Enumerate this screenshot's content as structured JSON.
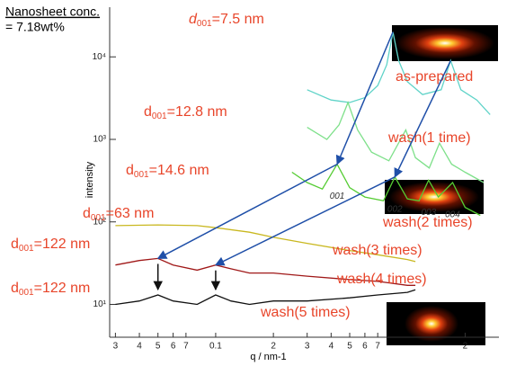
{
  "header": {
    "title": "Nanosheet conc.",
    "subtitle": "= 7.18wt%"
  },
  "chart_data": {
    "type": "line",
    "x_label": "q / nm-1",
    "y_label": "intensity",
    "log_x": true,
    "log_y": true,
    "xlim": [
      0.028,
      3
    ],
    "ylim": [
      4,
      40000
    ],
    "xticks": [
      {
        "value": 0.03,
        "label": "3"
      },
      {
        "value": 0.04,
        "label": "4"
      },
      {
        "value": 0.05,
        "label": "5"
      },
      {
        "value": 0.06,
        "label": "6"
      },
      {
        "value": 0.07,
        "label": "7"
      },
      0.1,
      {
        "value": 0.2,
        "label": "2"
      },
      {
        "value": 0.3,
        "label": "3"
      },
      {
        "value": 0.4,
        "label": "4"
      },
      {
        "value": 0.5,
        "label": "5"
      },
      {
        "value": 0.6,
        "label": "6"
      },
      {
        "value": 0.7,
        "label": "7"
      },
      2
    ],
    "yticks": [
      {
        "value": 10,
        "label": "10¹"
      },
      {
        "value": 100,
        "label": "10²"
      },
      {
        "value": 1000,
        "label": "10³"
      },
      {
        "value": 10000,
        "label": "10⁴"
      }
    ],
    "series": [
      {
        "name": "as-prepared",
        "color": "#5fd3c8",
        "x": [
          0.3,
          0.4,
          0.5,
          0.6,
          0.7,
          0.78,
          0.84,
          0.9,
          1.0,
          1.2,
          1.5,
          1.68,
          1.9,
          2.3,
          2.7
        ],
        "values": [
          4000,
          3000,
          2800,
          3200,
          4500,
          8000,
          20000,
          9000,
          5000,
          3500,
          4000,
          9000,
          4000,
          3000,
          2000
        ]
      },
      {
        "name": "wash(1 time)",
        "color": "#7ee08a",
        "x": [
          0.3,
          0.38,
          0.44,
          0.49,
          0.55,
          0.65,
          0.8,
          0.98,
          1.1,
          1.3,
          1.47,
          1.7,
          2.0,
          2.5
        ],
        "values": [
          1400,
          1000,
          1500,
          2800,
          1300,
          700,
          550,
          1300,
          600,
          450,
          900,
          500,
          400,
          300
        ]
      },
      {
        "name": "wash(2 times)",
        "color": "#55cc33",
        "x": [
          0.25,
          0.3,
          0.36,
          0.43,
          0.5,
          0.6,
          0.75,
          0.86,
          1.0,
          1.15,
          1.29,
          1.45,
          1.72,
          2.0,
          2.4
        ],
        "values": [
          400,
          300,
          250,
          500,
          260,
          200,
          180,
          350,
          190,
          180,
          320,
          200,
          300,
          150,
          120
        ]
      },
      {
        "name": "wash(3 times)",
        "color": "#c9b820",
        "x": [
          0.03,
          0.05,
          0.08,
          0.1,
          0.15,
          0.2,
          0.3,
          0.5,
          0.7,
          1.0,
          1.1
        ],
        "values": [
          90,
          92,
          90,
          85,
          75,
          65,
          55,
          45,
          40,
          35,
          33
        ]
      },
      {
        "name": "wash(4 times)",
        "color": "#a01818",
        "x": [
          0.03,
          0.04,
          0.05,
          0.06,
          0.08,
          0.1,
          0.12,
          0.15,
          0.2,
          0.3,
          0.5,
          0.7,
          1.0,
          1.1
        ],
        "values": [
          30,
          34,
          36,
          30,
          26,
          30,
          27,
          24,
          24,
          22,
          20,
          19,
          17,
          17
        ]
      },
      {
        "name": "wash(5 times)",
        "color": "#111111",
        "x": [
          0.03,
          0.04,
          0.05,
          0.06,
          0.08,
          0.1,
          0.12,
          0.15,
          0.2,
          0.3,
          0.5,
          0.7,
          1.0,
          1.1
        ],
        "values": [
          10,
          11,
          13,
          11,
          10,
          13,
          11,
          10,
          11,
          11,
          12,
          13,
          14,
          15
        ]
      }
    ],
    "annotations": [
      {
        "symbol": "d",
        "sub": "001",
        "text": "=7.5 nm"
      },
      {
        "symbol": "d",
        "sub": "001",
        "text": "=12.8 nm"
      },
      {
        "symbol": "d",
        "sub": "001",
        "text": "=14.6 nm"
      },
      {
        "symbol": "d",
        "sub": "001",
        "text": "=63 nm"
      },
      {
        "symbol": "d",
        "sub": "001",
        "text": "=122 nm"
      },
      {
        "symbol": "d",
        "sub": "001",
        "text": "=122 nm"
      }
    ],
    "peak_labels": [
      "001",
      "002",
      "003",
      "004"
    ]
  }
}
